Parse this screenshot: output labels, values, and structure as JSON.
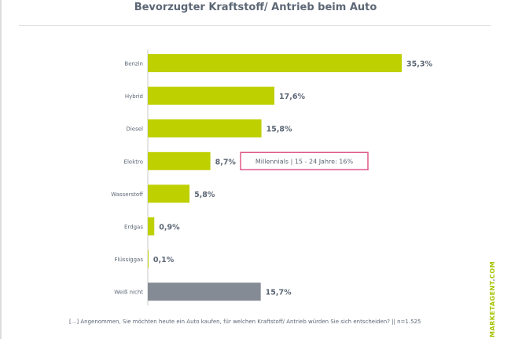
{
  "chart_data": {
    "type": "bar",
    "orientation": "horizontal",
    "title": "Bevorzugter Kraftstoff/ Antrieb beim Auto",
    "categories": [
      "Benzin",
      "Hybrid",
      "Diesel",
      "Elektro",
      "Wasserstoff",
      "Erdgas",
      "Flüssiggas",
      "Weiß nicht"
    ],
    "values": [
      35.3,
      17.6,
      15.8,
      8.7,
      5.8,
      0.9,
      0.1,
      15.7
    ],
    "value_labels": [
      "35,3%",
      "17,6%",
      "15,8%",
      "8,7%",
      "5,8%",
      "0,9%",
      "0,1%",
      "15,7%"
    ],
    "unit": "%",
    "xlim": [
      0,
      35.3
    ],
    "bar_colors": [
      "#bed000",
      "#bed000",
      "#bed000",
      "#bed000",
      "#bed000",
      "#bed000",
      "#bed000",
      "#858b95"
    ],
    "annotation": {
      "category": "Elektro",
      "text": "Millennials | 15 - 24 Jahre: 16%",
      "border_color": "#e0588a"
    },
    "grid": false,
    "legend": "none"
  },
  "footnote": "[...] Angenommen, Sie möchten heute ein Auto kaufen, für welchen Kraftstoff/ Antrieb würden Sie sich entscheiden? || n=1.525",
  "brand": {
    "main": "MARKETAGENT",
    "dot": ".",
    "suffix": "COM"
  },
  "colors": {
    "accent": "#bed000",
    "neutral": "#858b95",
    "text": "#5c6775",
    "highlight": "#e0588a"
  }
}
